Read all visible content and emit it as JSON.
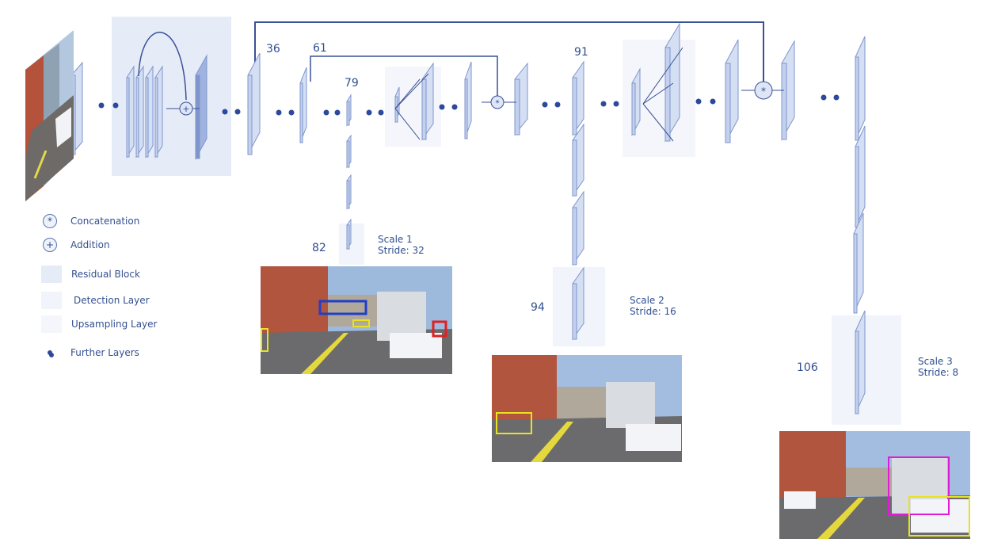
{
  "colors": {
    "accent": "#2d4a9a",
    "layer_fill": "#d5dff3",
    "layer_edge": "#7f96cc",
    "dark_layer": "#9fb2e0",
    "residual_bg": "#e6ebf8",
    "detection_bg": "#f1f4fb",
    "upsampling_bg": "#f4f6fb",
    "line": "#3a5196"
  },
  "layer_numbers": {
    "n36": "36",
    "n61": "61",
    "n79": "79",
    "n82": "82",
    "n91": "91",
    "n94": "94",
    "n106": "106"
  },
  "scales": [
    {
      "title": "Scale 1",
      "stride": "Stride: 32"
    },
    {
      "title": "Scale 2",
      "stride": "Stride: 16"
    },
    {
      "title": "Scale 3",
      "stride": "Stride: 8"
    }
  ],
  "legend": {
    "concatenation_symbol": "*",
    "concatenation": "Concatenation",
    "addition_symbol": "+",
    "addition": "Addition",
    "residual": "Residual Block",
    "detection": "Detection Layer",
    "upsampling": "Upsampling Layer",
    "further": "Further Layers"
  },
  "icons": {
    "concat": "asterisk-circle",
    "add": "plus-circle",
    "further": "dot"
  }
}
